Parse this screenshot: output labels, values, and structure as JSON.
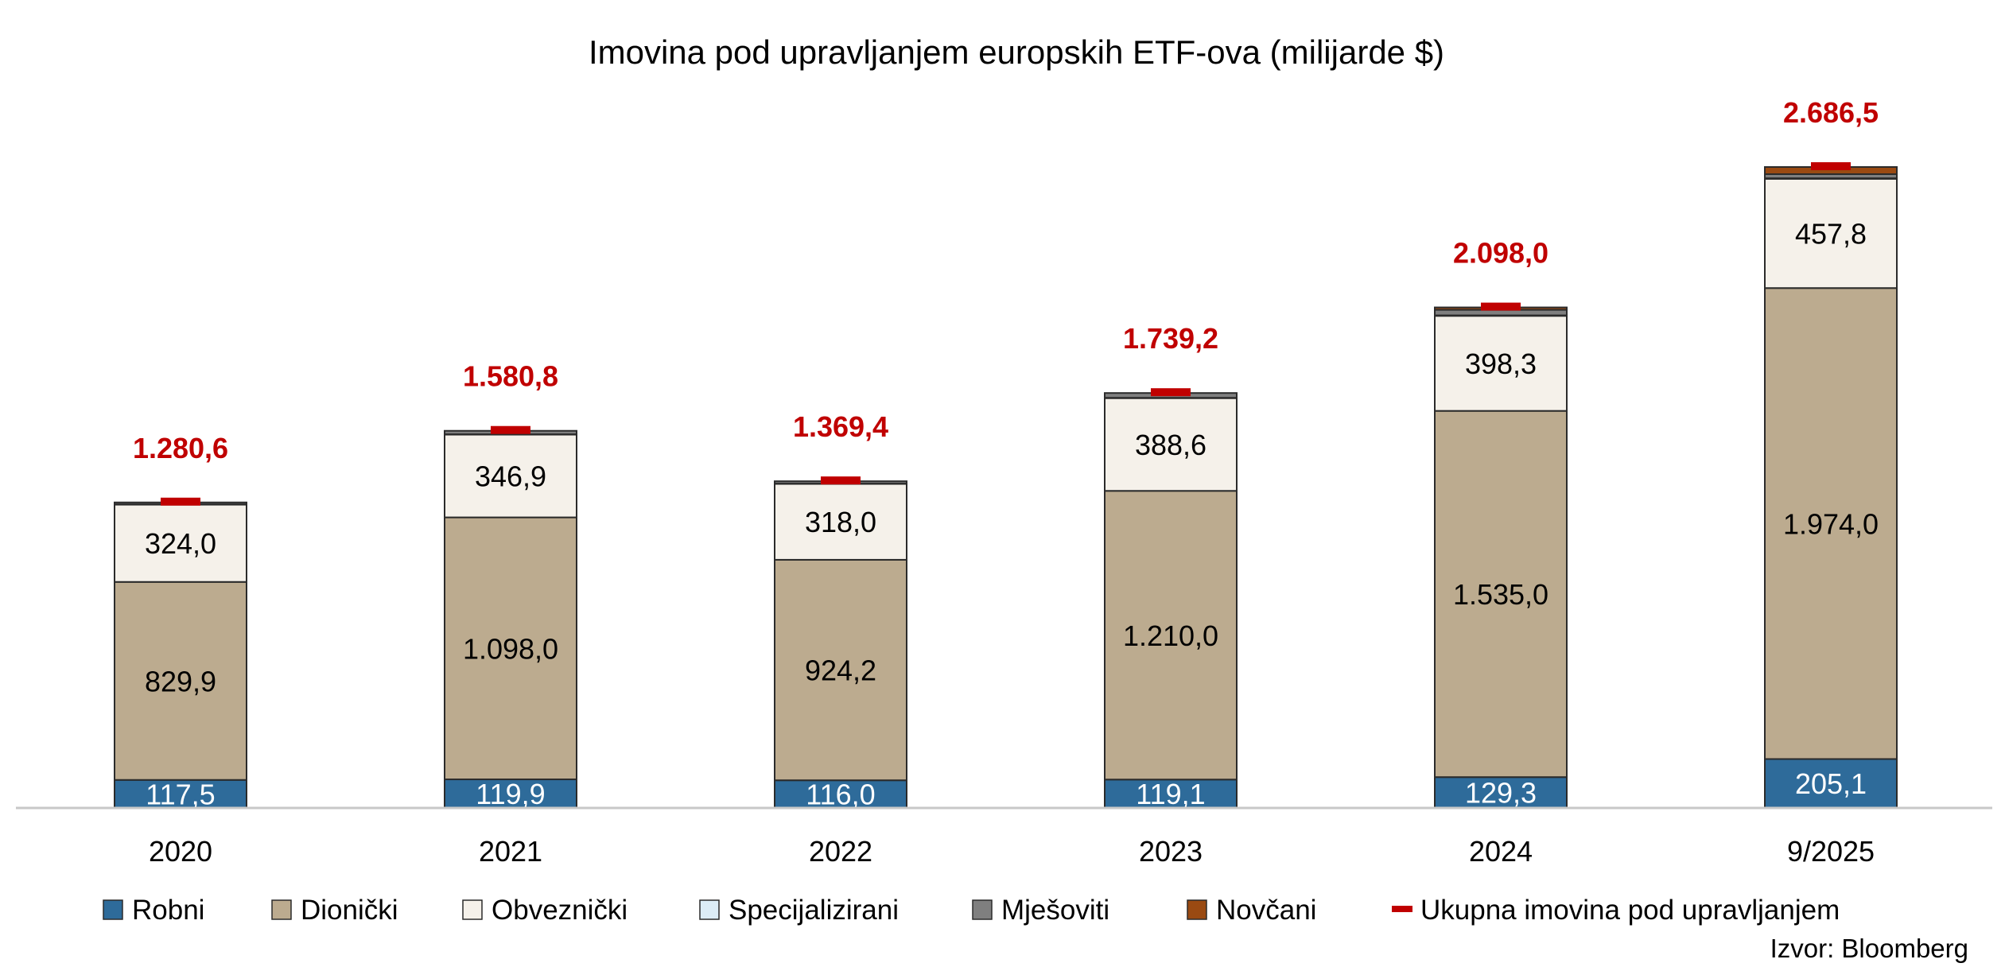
{
  "chart_data": {
    "type": "bar",
    "stacked": true,
    "title": "Imovina pod upravljanjem europskih ETF-ova (milijarde $)",
    "source": "Izvor: Bloomberg",
    "categories": [
      "2020",
      "2021",
      "2022",
      "2023",
      "2024",
      "9/2025"
    ],
    "series": [
      {
        "name": "Robni",
        "color": "#2e6b9a",
        "values": [
          117.5,
          119.9,
          116.0,
          119.1,
          129.3,
          205.1
        ],
        "labels": [
          "117,5",
          "119,9",
          "116,0",
          "119,1",
          "129,3",
          "205,1"
        ],
        "label_color": "#ffffff"
      },
      {
        "name": "Dionički",
        "color": "#bcab8f",
        "values": [
          829.9,
          1098.0,
          924.2,
          1210.0,
          1535.0,
          1974.0
        ],
        "labels": [
          "829,9",
          "1.098,0",
          "924,2",
          "1.210,0",
          "1.535,0",
          "1.974,0"
        ],
        "label_color": "#000000"
      },
      {
        "name": "Obveznički",
        "color": "#f5f1ea",
        "values": [
          324.0,
          346.9,
          318.0,
          388.6,
          398.3,
          457.8
        ],
        "labels": [
          "324,0",
          "346,9",
          "318,0",
          "388,6",
          "398,3",
          "457,8"
        ],
        "label_color": "#000000"
      },
      {
        "name": "Specijalizirani",
        "color": "#dcedf7",
        "values": [
          1.5,
          1.5,
          1.5,
          1.5,
          2.0,
          2.5
        ]
      },
      {
        "name": "Mješoviti",
        "color": "#7f7f7f",
        "values": [
          7.7,
          14.5,
          9.7,
          20.0,
          23.4,
          17.1
        ]
      },
      {
        "name": "Novčani",
        "color": "#9a4a12",
        "values": [
          0.0,
          0.0,
          0.0,
          0.0,
          10.0,
          30.0
        ]
      }
    ],
    "total": {
      "name": "Ukupna imovina pod upravljanjem",
      "color": "#c00000",
      "values": [
        1280.6,
        1580.8,
        1369.4,
        1739.2,
        2098.0,
        2686.5
      ],
      "labels": [
        "1.280,6",
        "1.580,8",
        "1.369,4",
        "1.739,2",
        "2.098,0",
        "2.686,5"
      ]
    },
    "ylim": [
      0,
      2800
    ],
    "xlabel": "",
    "ylabel": "",
    "grid": false,
    "legend_position": "bottom"
  }
}
